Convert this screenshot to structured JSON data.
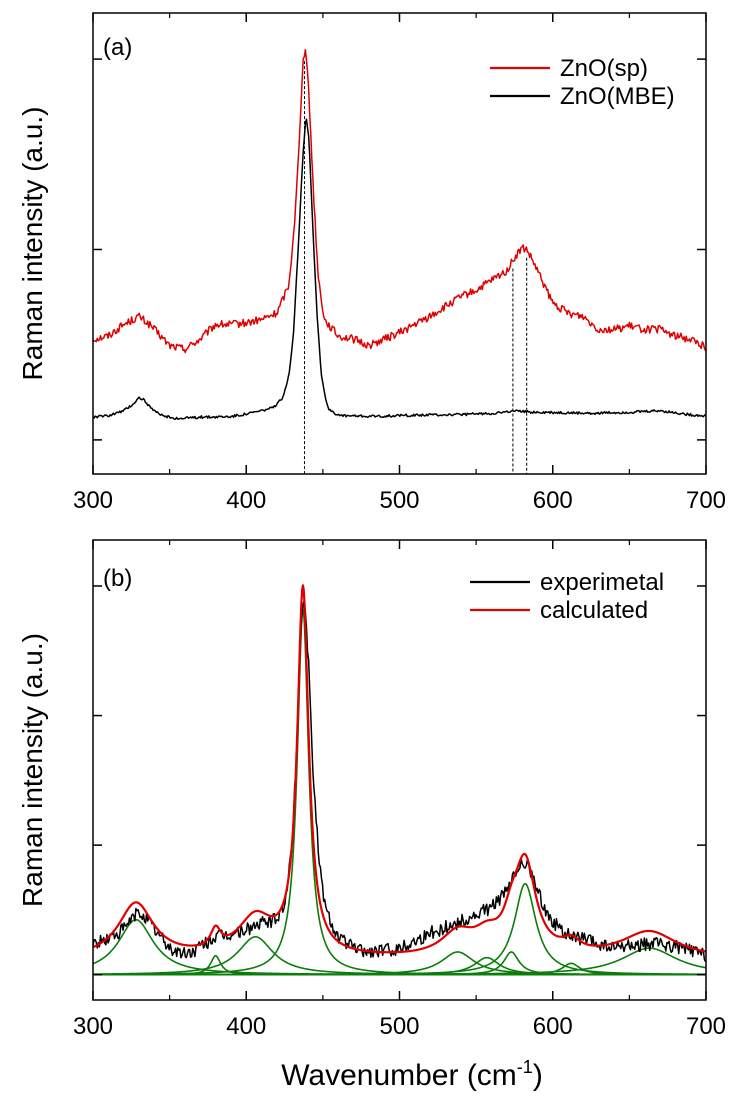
{
  "figure": {
    "xlabel": "Wavenumber (cm",
    "xlabel_sup": "-1",
    "xlabel_close": ")"
  },
  "colors": {
    "red": "#e00000",
    "black": "#000000",
    "green": "#0a7d0a"
  },
  "chart_data": [
    {
      "type": "line",
      "panel_label": "(a)",
      "xlabel": "",
      "ylabel": "Raman intensity (a.u.)",
      "xlim": [
        300,
        700
      ],
      "xticks": [
        300,
        400,
        500,
        600,
        700
      ],
      "xtick_labels": [
        "300",
        "400",
        "500",
        "600",
        "700"
      ],
      "yticks_count": 3,
      "ylim": [
        0,
        1.2
      ],
      "legend": "top-right",
      "series": [
        {
          "name": "ZnO(sp)",
          "color": "#e00000",
          "noise": 0.012,
          "points": [
            [
              300,
              0.31
            ],
            [
              310,
              0.32
            ],
            [
              320,
              0.355
            ],
            [
              330,
              0.38
            ],
            [
              338,
              0.35
            ],
            [
              350,
              0.29
            ],
            [
              360,
              0.28
            ],
            [
              370,
              0.31
            ],
            [
              380,
              0.355
            ],
            [
              390,
              0.355
            ],
            [
              400,
              0.36
            ],
            [
              410,
              0.37
            ],
            [
              420,
              0.39
            ],
            [
              428,
              0.48
            ],
            [
              432,
              0.7
            ],
            [
              435,
              0.95
            ],
            [
              437,
              1.18
            ],
            [
              439,
              1.2
            ],
            [
              441,
              1.05
            ],
            [
              444,
              0.75
            ],
            [
              447,
              0.5
            ],
            [
              451,
              0.37
            ],
            [
              460,
              0.32
            ],
            [
              470,
              0.31
            ],
            [
              480,
              0.29
            ],
            [
              490,
              0.31
            ],
            [
              500,
              0.33
            ],
            [
              510,
              0.355
            ],
            [
              520,
              0.38
            ],
            [
              530,
              0.41
            ],
            [
              540,
              0.44
            ],
            [
              550,
              0.46
            ],
            [
              560,
              0.49
            ],
            [
              570,
              0.52
            ],
            [
              575,
              0.56
            ],
            [
              580,
              0.59
            ],
            [
              583,
              0.585
            ],
            [
              588,
              0.54
            ],
            [
              595,
              0.47
            ],
            [
              600,
              0.42
            ],
            [
              610,
              0.39
            ],
            [
              620,
              0.38
            ],
            [
              630,
              0.34
            ],
            [
              640,
              0.34
            ],
            [
              650,
              0.35
            ],
            [
              660,
              0.34
            ],
            [
              670,
              0.34
            ],
            [
              680,
              0.32
            ],
            [
              690,
              0.31
            ],
            [
              700,
              0.285
            ]
          ]
        },
        {
          "name": "ZnO(MBE)",
          "color": "#000000",
          "noise": 0.004,
          "points": [
            [
              300,
              0.07
            ],
            [
              310,
              0.075
            ],
            [
              320,
              0.09
            ],
            [
              326,
              0.11
            ],
            [
              330,
              0.13
            ],
            [
              333,
              0.125
            ],
            [
              338,
              0.095
            ],
            [
              345,
              0.075
            ],
            [
              355,
              0.065
            ],
            [
              370,
              0.07
            ],
            [
              390,
              0.072
            ],
            [
              400,
              0.08
            ],
            [
              410,
              0.09
            ],
            [
              418,
              0.1
            ],
            [
              424,
              0.13
            ],
            [
              428,
              0.2
            ],
            [
              431,
              0.34
            ],
            [
              434,
              0.6
            ],
            [
              437,
              0.88
            ],
            [
              439,
              1.0
            ],
            [
              441,
              0.92
            ],
            [
              443,
              0.7
            ],
            [
              446,
              0.4
            ],
            [
              449,
              0.2
            ],
            [
              453,
              0.1
            ],
            [
              460,
              0.075
            ],
            [
              480,
              0.072
            ],
            [
              500,
              0.075
            ],
            [
              520,
              0.077
            ],
            [
              540,
              0.078
            ],
            [
              560,
              0.082
            ],
            [
              575,
              0.088
            ],
            [
              590,
              0.085
            ],
            [
              620,
              0.082
            ],
            [
              650,
              0.085
            ],
            [
              670,
              0.09
            ],
            [
              690,
              0.077
            ],
            [
              700,
              0.074
            ]
          ]
        }
      ],
      "reference_lines": [
        438,
        574,
        583
      ]
    },
    {
      "type": "line",
      "panel_label": "(b)",
      "xlabel": "Wavenumber (cm-1)",
      "ylabel": "Raman intensity (a.u.)",
      "xlim": [
        300,
        700
      ],
      "xticks": [
        300,
        400,
        500,
        600,
        700
      ],
      "xtick_labels": [
        "300",
        "400",
        "500",
        "600",
        "700"
      ],
      "yticks_count": 4,
      "ylim": [
        0,
        1.05
      ],
      "legend": "top-right",
      "series": [
        {
          "name": "experimetal",
          "color": "#000000",
          "noise": 0.018,
          "points": [
            [
              300,
              0.08
            ],
            [
              310,
              0.095
            ],
            [
              320,
              0.12
            ],
            [
              328,
              0.16
            ],
            [
              333,
              0.16
            ],
            [
              340,
              0.12
            ],
            [
              350,
              0.07
            ],
            [
              358,
              0.055
            ],
            [
              365,
              0.06
            ],
            [
              372,
              0.08
            ],
            [
              380,
              0.1
            ],
            [
              390,
              0.105
            ],
            [
              400,
              0.12
            ],
            [
              410,
              0.135
            ],
            [
              420,
              0.145
            ],
            [
              426,
              0.2
            ],
            [
              430,
              0.35
            ],
            [
              433,
              0.6
            ],
            [
              436,
              0.95
            ],
            [
              438,
              1.0
            ],
            [
              441,
              0.8
            ],
            [
              444,
              0.5
            ],
            [
              448,
              0.28
            ],
            [
              452,
              0.17
            ],
            [
              460,
              0.1
            ],
            [
              470,
              0.07
            ],
            [
              480,
              0.06
            ],
            [
              490,
              0.065
            ],
            [
              500,
              0.07
            ],
            [
              510,
              0.09
            ],
            [
              520,
              0.11
            ],
            [
              530,
              0.125
            ],
            [
              540,
              0.14
            ],
            [
              550,
              0.155
            ],
            [
              560,
              0.18
            ],
            [
              570,
              0.22
            ],
            [
              577,
              0.28
            ],
            [
              581,
              0.3
            ],
            [
              585,
              0.28
            ],
            [
              590,
              0.22
            ],
            [
              598,
              0.15
            ],
            [
              605,
              0.12
            ],
            [
              612,
              0.1
            ],
            [
              620,
              0.095
            ],
            [
              630,
              0.08
            ],
            [
              640,
              0.07
            ],
            [
              650,
              0.075
            ],
            [
              660,
              0.08
            ],
            [
              670,
              0.08
            ],
            [
              680,
              0.075
            ],
            [
              690,
              0.065
            ],
            [
              700,
              0.05
            ]
          ]
        },
        {
          "name": "calculated",
          "color": "#e00000",
          "noise": 0,
          "points": []
        }
      ],
      "components": [
        {
          "center": 328,
          "height": 0.145,
          "width": 14
        },
        {
          "center": 380,
          "height": 0.05,
          "width": 4
        },
        {
          "center": 406,
          "height": 0.1,
          "width": 14
        },
        {
          "center": 437,
          "height": 0.965,
          "width": 4.5
        },
        {
          "center": 538,
          "height": 0.06,
          "width": 13
        },
        {
          "center": 557,
          "height": 0.045,
          "width": 10
        },
        {
          "center": 573,
          "height": 0.06,
          "width": 6
        },
        {
          "center": 582,
          "height": 0.24,
          "width": 8.5
        },
        {
          "center": 612,
          "height": 0.03,
          "width": 7
        },
        {
          "center": 663,
          "height": 0.07,
          "width": 22
        }
      ]
    }
  ]
}
